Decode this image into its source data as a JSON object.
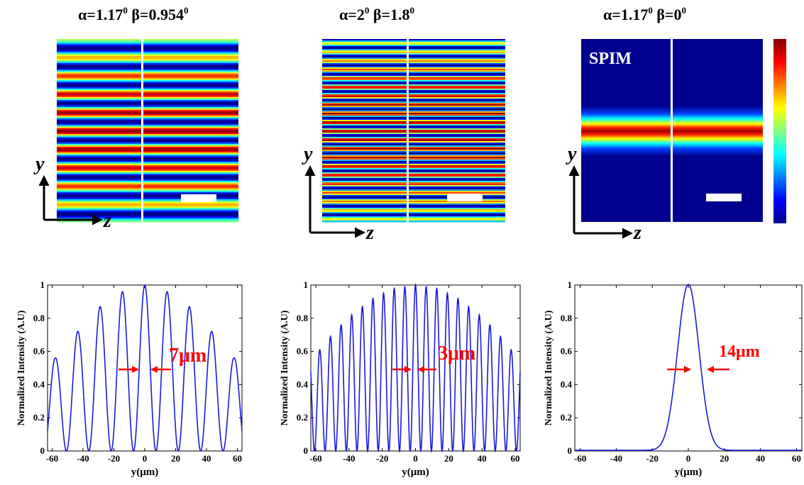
{
  "top_panels": [
    {
      "alpha": "α=1.17",
      "beta": "β=0.954",
      "deg": "0",
      "axis_y": "y",
      "axis_z": "z",
      "inset": ""
    },
    {
      "alpha": "α=2",
      "beta": "β=1.8",
      "deg": "0",
      "axis_y": "y",
      "axis_z": "z",
      "inset": ""
    },
    {
      "alpha": "α=1.17",
      "beta": "β=0",
      "deg": "0",
      "axis_y": "y",
      "axis_z": "z",
      "inset": "SPIM"
    }
  ],
  "chart_data": [
    {
      "type": "line",
      "ylabel": "Normalized Intensity (A.U)",
      "xlabel": "y(μm)",
      "xlim": [
        -63,
        63
      ],
      "ylim": [
        0,
        1
      ],
      "xticks": [
        "-60",
        "-40",
        "-20",
        "0",
        "20",
        "40",
        "60"
      ],
      "yticks": [
        "0",
        "0.2",
        "0.4",
        "0.6",
        "0.8",
        "1"
      ],
      "period_um": 14.5,
      "peaks": [
        {
          "x": -58,
          "y": 0.56
        },
        {
          "x": -43.5,
          "y": 0.72
        },
        {
          "x": -29,
          "y": 0.87
        },
        {
          "x": -14.5,
          "y": 0.96
        },
        {
          "x": 0,
          "y": 1.0
        },
        {
          "x": 14.5,
          "y": 0.96
        },
        {
          "x": 29,
          "y": 0.87
        },
        {
          "x": 43.5,
          "y": 0.72
        },
        {
          "x": 58,
          "y": 0.56
        }
      ],
      "annotation": "7μm"
    },
    {
      "type": "line",
      "ylabel": "Normalized Intensity (A.U)",
      "xlabel": "y(μm)",
      "xlim": [
        -63,
        63
      ],
      "ylim": [
        0,
        1
      ],
      "xticks": [
        "-60",
        "-40",
        "-20",
        "0",
        "20",
        "40",
        "60"
      ],
      "yticks": [
        "0",
        "0.2",
        "0.4",
        "0.6",
        "0.8",
        "1"
      ],
      "period_um": 6.4,
      "peaks": [
        {
          "x": -57.6,
          "y": 0.61
        },
        {
          "x": -51.2,
          "y": 0.69
        },
        {
          "x": -44.8,
          "y": 0.76
        },
        {
          "x": -38.4,
          "y": 0.82
        },
        {
          "x": -32,
          "y": 0.87
        },
        {
          "x": -25.6,
          "y": 0.92
        },
        {
          "x": -19.2,
          "y": 0.95
        },
        {
          "x": -12.8,
          "y": 0.98
        },
        {
          "x": -6.4,
          "y": 0.99
        },
        {
          "x": 0,
          "y": 1.0
        },
        {
          "x": 6.4,
          "y": 0.99
        },
        {
          "x": 12.8,
          "y": 0.98
        },
        {
          "x": 19.2,
          "y": 0.95
        },
        {
          "x": 25.6,
          "y": 0.92
        },
        {
          "x": 32,
          "y": 0.87
        },
        {
          "x": 38.4,
          "y": 0.82
        },
        {
          "x": 44.8,
          "y": 0.76
        },
        {
          "x": 51.2,
          "y": 0.69
        },
        {
          "x": 57.6,
          "y": 0.61
        }
      ],
      "annotation": "3μm"
    },
    {
      "type": "line",
      "ylabel": "Normalized Intensity (A.U)",
      "xlabel": "y(μm)",
      "xlim": [
        -63,
        63
      ],
      "ylim": [
        0,
        1
      ],
      "xticks": [
        "-60",
        "-40",
        "-20",
        "0",
        "20",
        "40",
        "60"
      ],
      "yticks": [
        "0",
        "0.2",
        "0.4",
        "0.6",
        "0.8",
        "1"
      ],
      "peaks": [
        {
          "x": 0,
          "y": 1.0
        }
      ],
      "gaussian_fwhm_um": 14,
      "annotation": "14μm"
    }
  ]
}
